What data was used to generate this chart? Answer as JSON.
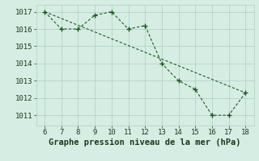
{
  "x": [
    6,
    7,
    8,
    9,
    10,
    11,
    12,
    13,
    14,
    15,
    16,
    17,
    18
  ],
  "y": [
    1017,
    1016,
    1016,
    1016.8,
    1017,
    1016,
    1016.2,
    1014,
    1013,
    1012.5,
    1011,
    1011,
    1012.3
  ],
  "trend_x": [
    6,
    18
  ],
  "trend_y": [
    1017,
    1012.3
  ],
  "xlabel": "Graphe pression niveau de la mer (hPa)",
  "xlim": [
    5.5,
    18.5
  ],
  "ylim": [
    1010.4,
    1017.4
  ],
  "yticks": [
    1011,
    1012,
    1013,
    1014,
    1015,
    1016,
    1017
  ],
  "xticks": [
    6,
    7,
    8,
    9,
    10,
    11,
    12,
    13,
    14,
    15,
    16,
    17,
    18
  ],
  "line_color": "#1a5c1a",
  "bg_color": "#d6ede4",
  "grid_color": "#aacfbe",
  "tick_fontsize": 6.5,
  "label_fontsize": 7.5
}
